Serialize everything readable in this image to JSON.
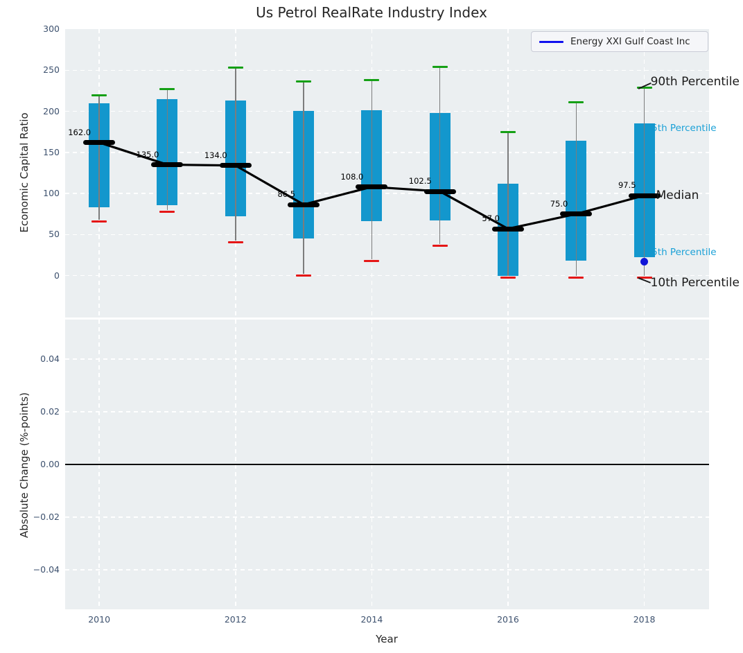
{
  "title": "Us Petrol RealRate Industry Index",
  "colors": {
    "bar": "#1397cd",
    "cap_high": "#15a015",
    "cap_low": "#e51616",
    "whisker": "#7c7c7c",
    "median": "#000000",
    "company_line": "#1111ee",
    "company_dot": "#0f15d8",
    "annotation_cyan": "#1ba1d7",
    "annotation_black": "#1a1a1a",
    "axes_bg": "#ebeff1",
    "grid": "#ffffff",
    "tick": "#3d516e"
  },
  "chart_data": [
    {
      "type": "box-percentile-timeseries",
      "title": "Us Petrol RealRate Industry Index",
      "ylabel": "Economic Capital Ratio",
      "xlabel": "Year",
      "ylim": [
        -51,
        300
      ],
      "yticks": [
        0,
        50,
        100,
        150,
        200,
        250,
        300
      ],
      "yticks_display": [
        "0",
        "50",
        "100",
        "150",
        "200",
        "250",
        "300"
      ],
      "xlim": [
        2009.5,
        2018.95
      ],
      "xticks": [
        2010,
        2012,
        2014,
        2016,
        2018
      ],
      "grid": "white dashed, both axes",
      "legend": {
        "label": "Energy XXI Gulf Coast Inc",
        "position": "upper right"
      },
      "series": [
        {
          "year": 2010,
          "p10": 68,
          "p25": 83,
          "median": 162.0,
          "p75": 209.5,
          "p90": 219.5,
          "median_label": "162.0"
        },
        {
          "year": 2011,
          "p10": 80,
          "p25": 85.5,
          "median": 135.0,
          "p75": 214.5,
          "p90": 227,
          "median_label": "135.0"
        },
        {
          "year": 2012,
          "p10": 42.5,
          "p25": 72,
          "median": 134.0,
          "p75": 213.5,
          "p90": 253.5,
          "median_label": "134.0"
        },
        {
          "year": 2013,
          "p10": 2,
          "p25": 45,
          "median": 86.5,
          "p75": 200.5,
          "p90": 236,
          "median_label": "86.5"
        },
        {
          "year": 2014,
          "p10": 19.5,
          "p25": 66.5,
          "median": 108.0,
          "p75": 201.5,
          "p90": 238,
          "median_label": "108.0"
        },
        {
          "year": 2015,
          "p10": 38.5,
          "p25": 67,
          "median": 102.5,
          "p75": 197.5,
          "p90": 254,
          "median_label": "102.5"
        },
        {
          "year": 2016,
          "p10": 0,
          "p25": 0,
          "median": 57.0,
          "p75": 112,
          "p90": 174.5,
          "median_label": "57.0"
        },
        {
          "year": 2017,
          "p10": 0,
          "p25": 18,
          "median": 75.0,
          "p75": 164.5,
          "p90": 211,
          "median_label": "75.0"
        },
        {
          "year": 2018,
          "p10": 0,
          "p25": 22,
          "median": 97.5,
          "p75": 185,
          "p90": 229,
          "median_label": "97.5"
        }
      ],
      "company_point": {
        "series": "Energy XXI Gulf Coast Inc",
        "year": 2018,
        "value": 17
      },
      "annotations": [
        {
          "label": "90th Percentile",
          "attach": "p90",
          "style": "large-black"
        },
        {
          "label": "75th Percentile",
          "attach": "p75",
          "style": "small-cyan"
        },
        {
          "label": "Median",
          "attach": "median",
          "style": "large-black"
        },
        {
          "label": "25th Percentile",
          "attach": "p25",
          "style": "small-cyan"
        },
        {
          "label": "10th Percentile",
          "attach": "p10",
          "style": "large-black"
        }
      ]
    },
    {
      "type": "line",
      "ylabel": "Absolute Change (%-points)",
      "ylim": [
        -0.055,
        0.055
      ],
      "yticks": [
        0.04,
        0.02,
        0.0,
        -0.02,
        -0.04
      ],
      "yticks_display": [
        "0.04",
        "0.02",
        "0.00",
        "−0.02",
        "−0.04"
      ],
      "zero_line": 0.0,
      "grid": "white dashed, both axes",
      "series": []
    }
  ]
}
